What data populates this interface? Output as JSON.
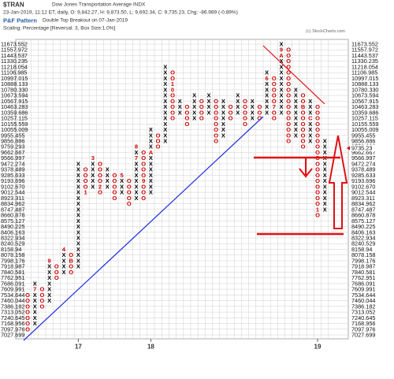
{
  "header": {
    "symbol": "$TRAN",
    "name": "Dow Jones Transportation Average INDX",
    "quote": "23-Jan-2019, 11:12 ET, daily, O: 9,842.27, H: 9,873.50, L: 9,692.34, C: 9,735.23, Chg: -86.989 (-0.89%)",
    "copyright": "(c) StockCharts.com",
    "pattern_title": "P&F Pattern",
    "pattern": "Double Top Breakout on 07-Jan-2019",
    "scaling": "Scaling: Percentage [Reversal: 3, Box Size:1.0%]"
  },
  "chart_data": {
    "type": "pnf",
    "log_scale": true,
    "grid": true,
    "x_color": "#000000",
    "o_color": "#cc0000",
    "ylim": [
      7027.699,
      11673.552
    ],
    "yticks": [
      11673.552,
      11557.972,
      11443.537,
      11330.235,
      11218.054,
      11106.985,
      10997.015,
      10888.133,
      {
        "value": 10780.33,
        "label": "10780.330"
      },
      10673.594,
      10567.915,
      10463.283,
      10359.686,
      10257.115,
      10155.559,
      10055.009,
      9955.455,
      9856.886,
      9759.293,
      9662.667,
      9566.997,
      9472.274,
      9378.489,
      9285.633,
      9193.696,
      {
        "value": 9102.67,
        "label": "9102.670"
      },
      9012.544,
      8923.311,
      8834.962,
      8747.487,
      8660.878,
      8575.127,
      8490.225,
      8406.163,
      8322.934,
      8240.529,
      8158.94,
      8078.158,
      7998.176,
      7918.987,
      7840.581,
      7762.951,
      7686.091,
      7609.991,
      7534.644,
      7460.044,
      7386.182,
      7313.052,
      7240.645,
      7168.956,
      7097.976,
      7027.699
    ],
    "last_box": 9662.667,
    "last_price": 9735.23,
    "columns": [
      {
        "kind": "O",
        "high": 7534.644,
        "low": 7097.976
      },
      {
        "kind": "X",
        "low": 7168.956,
        "high": 7686.091,
        "marks": [
          {
            "price": 7609.991,
            "label": "7"
          }
        ]
      },
      {
        "kind": "O",
        "high": 7609.991,
        "low": 7386.182
      },
      {
        "kind": "X",
        "low": 7460.044,
        "high": 7998.176,
        "marks": [
          {
            "price": 7998.176,
            "label": "9"
          }
        ]
      },
      {
        "kind": "O",
        "high": 7918.987,
        "low": 7762.951
      },
      {
        "kind": "X",
        "low": 7840.581,
        "high": 8158.94,
        "marks": [
          {
            "price": 8158.94,
            "label": "4"
          }
        ]
      },
      {
        "kind": "O",
        "high": 8078.158,
        "low": 7840.581,
        "marks": [
          {
            "price": 7998.176,
            "label": "B"
          }
        ]
      },
      {
        "kind": "X",
        "low": 7918.987,
        "high": 9472.274,
        "year_label": "17"
      },
      {
        "kind": "O",
        "high": 9378.489,
        "low": 9012.544,
        "marks": [
          {
            "price": 9012.544,
            "label": "1"
          }
        ]
      },
      {
        "kind": "X",
        "low": 9102.67,
        "high": 9566.997,
        "marks": [
          {
            "price": 9566.997,
            "label": "3"
          }
        ]
      },
      {
        "kind": "O",
        "high": 9472.274,
        "low": 9012.544,
        "marks": [
          {
            "price": 9102.67,
            "label": "2"
          }
        ]
      },
      {
        "kind": "X",
        "low": 9102.67,
        "high": 9378.489
      },
      {
        "kind": "O",
        "high": 9285.633,
        "low": 8923.311
      },
      {
        "kind": "X",
        "low": 9012.544,
        "high": 9285.633,
        "marks": [
          {
            "price": 9285.633,
            "label": "5"
          }
        ]
      },
      {
        "kind": "O",
        "high": 9193.696,
        "low": 8834.962
      },
      {
        "kind": "X",
        "low": 8923.311,
        "high": 9759.293,
        "marks": [
          {
            "price": 9566.997,
            "label": "7"
          },
          {
            "price": 9759.293,
            "label": "8"
          }
        ]
      },
      {
        "kind": "O",
        "high": 9662.667,
        "low": 8923.311,
        "marks": [
          {
            "price": 9193.696,
            "label": "9"
          }
        ]
      },
      {
        "kind": "X",
        "low": 9012.544,
        "high": 10055.009,
        "year_label": "18",
        "marks": [
          {
            "price": 9662.667,
            "label": "A"
          }
        ]
      },
      {
        "kind": "O",
        "high": 9955.455,
        "low": 9759.293
      },
      {
        "kind": "X",
        "low": 9856.886,
        "high": 11218.054
      },
      {
        "kind": "O",
        "high": 11106.985,
        "low": 10257.115,
        "marks": [
          {
            "price": 10888.133,
            "label": "1"
          },
          {
            "price": 10780.33,
            "label": "0"
          }
        ]
      },
      {
        "kind": "X",
        "low": 10359.686,
        "high": 10567.915
      },
      {
        "kind": "O",
        "high": 10463.283,
        "low": 10155.559
      },
      {
        "kind": "X",
        "low": 10257.115,
        "high": 10673.594
      },
      {
        "kind": "O",
        "high": 10567.915,
        "low": 10257.115
      },
      {
        "kind": "X",
        "low": 10359.686,
        "high": 10673.594
      },
      {
        "kind": "O",
        "high": 10567.915,
        "low": 9856.886
      },
      {
        "kind": "X",
        "low": 9955.455,
        "high": 10567.915
      },
      {
        "kind": "O",
        "high": 10463.283,
        "low": 10257.115
      },
      {
        "kind": "X",
        "low": 10359.686,
        "high": 10673.594
      },
      {
        "kind": "O",
        "high": 10567.915,
        "low": 10155.559
      },
      {
        "kind": "X",
        "low": 10257.115,
        "high": 10567.915
      },
      {
        "kind": "O",
        "high": 10463.283,
        "low": 10257.115
      },
      {
        "kind": "X",
        "low": 10359.686,
        "high": 11106.985,
        "marks": [
          {
            "price": 10997.015,
            "label": "6"
          }
        ]
      },
      {
        "kind": "O",
        "high": 10997.015,
        "low": 10257.115,
        "marks": [
          {
            "price": 10463.283,
            "label": "7"
          }
        ]
      },
      {
        "kind": "X",
        "low": 10359.686,
        "high": 11673.552,
        "marks": [
          {
            "price": 11557.972,
            "label": "9"
          },
          {
            "price": 11443.537,
            "label": "A"
          }
        ]
      },
      {
        "kind": "O",
        "high": 11557.972,
        "low": 9856.886
      },
      {
        "kind": "X",
        "low": 9955.455,
        "high": 10780.33
      },
      {
        "kind": "O",
        "high": 10673.594,
        "low": 9759.293,
        "marks": [
          {
            "price": 10463.283,
            "label": "B"
          }
        ]
      },
      {
        "kind": "X",
        "low": 9856.886,
        "high": 10567.915,
        "marks": [
          {
            "price": 10257.115,
            "label": "C"
          }
        ]
      },
      {
        "kind": "O",
        "high": 10463.283,
        "low": 8660.878,
        "year_label": "19",
        "marks": [
          {
            "price": 8747.487,
            "label": "1"
          }
        ]
      },
      {
        "kind": "X",
        "low": 8747.487,
        "high": 9856.886
      }
    ]
  }
}
